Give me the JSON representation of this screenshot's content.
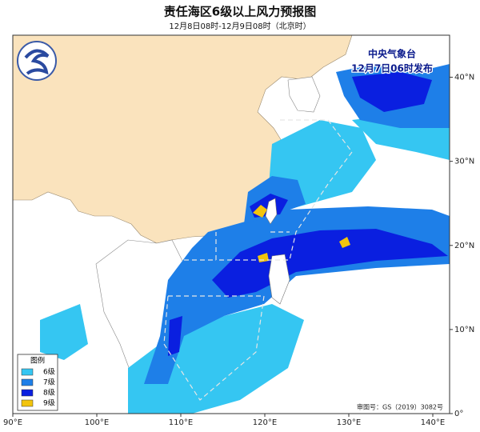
{
  "title": "责任海区6级以上风力预报图",
  "subtitle": "12月8日08时-12月9日08时（北京时）",
  "agency": "中央气象台",
  "issue_time": "12月7日06时发布",
  "legend": {
    "title": "图例",
    "items": [
      {
        "label": "6级",
        "color": "#35c6f2"
      },
      {
        "label": "7级",
        "color": "#1e7fe8"
      },
      {
        "label": "8级",
        "color": "#0a1fe0"
      },
      {
        "label": "9级",
        "color": "#f2c40c"
      }
    ]
  },
  "axes": {
    "xlim": [
      90,
      142
    ],
    "ylim": [
      0,
      45
    ],
    "xticks": [
      {
        "value": 90,
        "label": "90°E"
      },
      {
        "value": 100,
        "label": "100°E"
      },
      {
        "value": 110,
        "label": "110°E"
      },
      {
        "value": 120,
        "label": "120°E"
      },
      {
        "value": 130,
        "label": "130°E"
      },
      {
        "value": 140,
        "label": "140°E"
      }
    ],
    "yticks": [
      {
        "value": 0,
        "label": "0°"
      },
      {
        "value": 10,
        "label": "10°N"
      },
      {
        "value": 20,
        "label": "20°N"
      },
      {
        "value": 30,
        "label": "30°N"
      },
      {
        "value": 40,
        "label": "40°N"
      }
    ]
  },
  "approval": "审图号：GS（2019）3082号"
}
